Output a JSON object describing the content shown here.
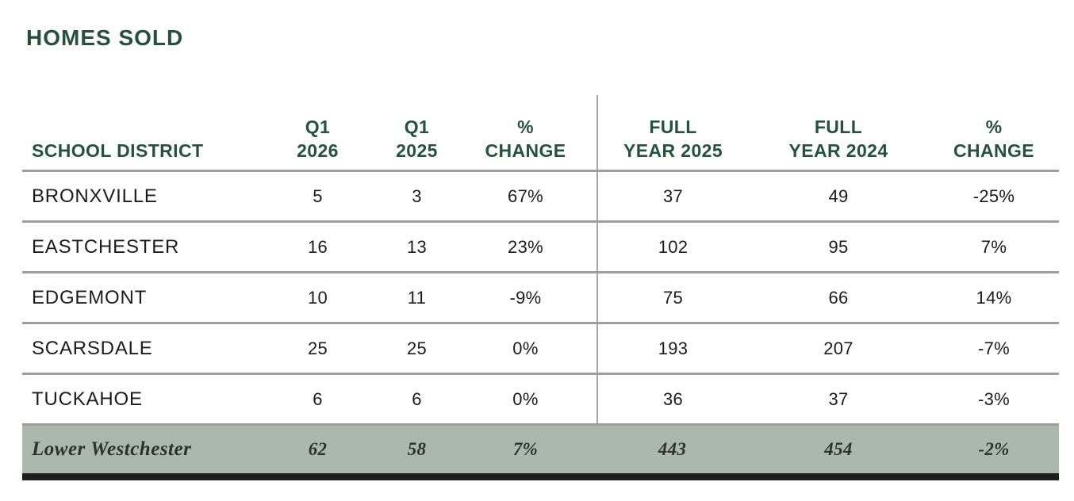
{
  "title": "HOMES SOLD",
  "colors": {
    "heading_green": "#24503c",
    "header_text_green": "#25523e",
    "separator_gray": "#9d9d9d",
    "summary_sage": "#aab8ae",
    "bottom_bar_black": "#1f1f1d"
  },
  "table": {
    "headers": [
      {
        "line1": "",
        "line2": "SCHOOL DISTRICT"
      },
      {
        "line1": "Q1",
        "line2": "2026"
      },
      {
        "line1": "Q1",
        "line2": "2025"
      },
      {
        "line1": "%",
        "line2": "CHANGE"
      },
      {
        "line1": "FULL",
        "line2": "YEAR 2025"
      },
      {
        "line1": "FULL",
        "line2": "YEAR 2024"
      },
      {
        "line1": "%",
        "line2": "CHANGE"
      }
    ],
    "rows": [
      {
        "district": "BRONXVILLE",
        "values": [
          "5",
          "3",
          "67%",
          "37",
          "49",
          "-25%"
        ]
      },
      {
        "district": "EASTCHESTER",
        "values": [
          "16",
          "13",
          "23%",
          "102",
          "95",
          "7%"
        ]
      },
      {
        "district": "EDGEMONT",
        "values": [
          "10",
          "11",
          "-9%",
          "75",
          "66",
          "14%"
        ]
      },
      {
        "district": "SCARSDALE",
        "values": [
          "25",
          "25",
          "0%",
          "193",
          "207",
          "-7%"
        ]
      },
      {
        "district": "TUCKAHOE",
        "values": [
          "6",
          "6",
          "0%",
          "36",
          "37",
          "-3%"
        ]
      }
    ],
    "summary": {
      "district": "Lower Westchester",
      "values": [
        "62",
        "58",
        "7%",
        "443",
        "454",
        "-2%"
      ]
    }
  }
}
